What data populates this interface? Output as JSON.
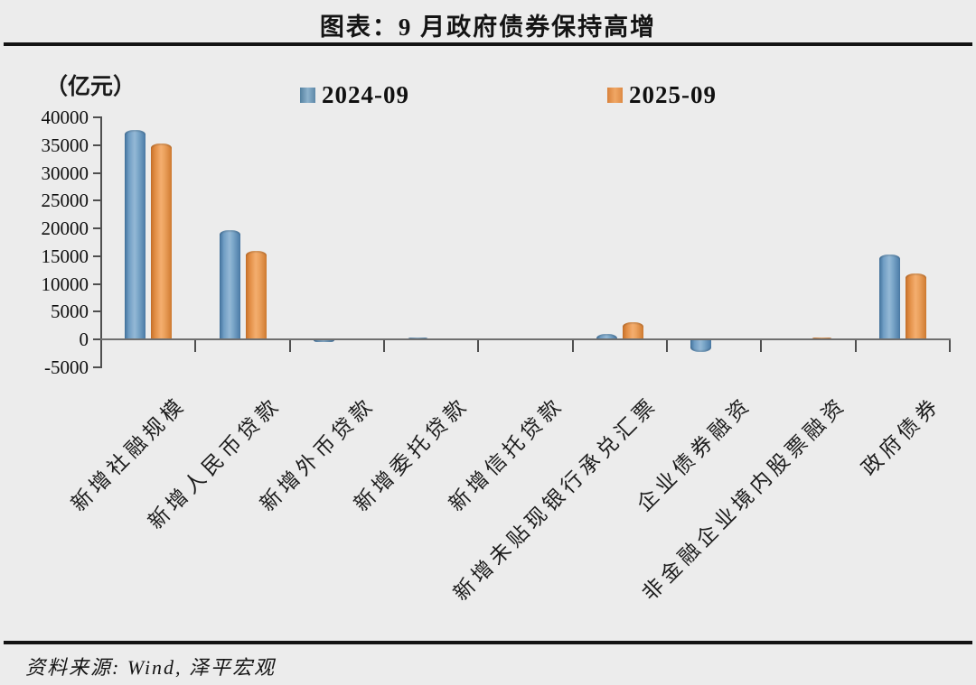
{
  "page": {
    "background": "#ececec"
  },
  "header": {
    "title": "图表：9 月政府债券保持高增"
  },
  "chart": {
    "unit_label": "（亿元）"
  },
  "chart_data": {
    "type": "bar",
    "title": "图表：9 月政府债券保持高增",
    "ylabel": "（亿元）",
    "ylim": [
      -5000,
      40000
    ],
    "yticks": [
      40000,
      35000,
      30000,
      25000,
      20000,
      15000,
      10000,
      5000,
      0,
      -5000
    ],
    "grid": false,
    "legend_position": "top",
    "categories": [
      "新增社融规模",
      "新增人民币贷款",
      "新增外币贷款",
      "新增委托贷款",
      "新增信托贷款",
      "新增未贴现银行承兑汇票",
      "企业债券融资",
      "非金融企业境内股票融资",
      "政府债券"
    ],
    "series": [
      {
        "name": "2024-09",
        "color": "#6f9dc3",
        "values": [
          37700,
          19700,
          -400,
          400,
          0,
          1000,
          -2100,
          0,
          15300
        ]
      },
      {
        "name": "2025-09",
        "color": "#eb9a4d",
        "values": [
          35300,
          16000,
          0,
          150,
          0,
          3100,
          0,
          350,
          11800
        ]
      }
    ]
  },
  "footer": {
    "source": "资料来源: Wind, 泽平宏观"
  }
}
